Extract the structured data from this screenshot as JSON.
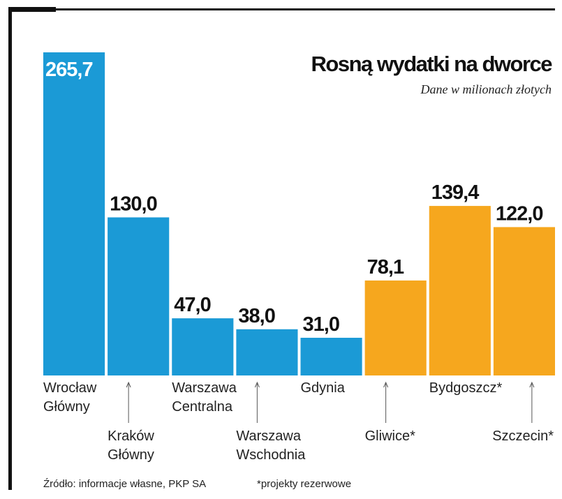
{
  "chart_data": {
    "type": "bar",
    "title": "Rosną wydatki na dworce",
    "subtitle": "Dane w milionach złotych",
    "categories": [
      "Wrocław\nGłówny",
      "Kraków\nGłówny",
      "Warszawa\nCentralna",
      "Warszawa\nWschodnia",
      "Gdynia",
      "Gliwice*",
      "Bydgoszcz*",
      "Szczecin*"
    ],
    "values": [
      265.7,
      130.0,
      47.0,
      38.0,
      31.0,
      78.1,
      139.4,
      122.0
    ],
    "value_labels": [
      "265,7",
      "130,0",
      "47,0",
      "38,0",
      "31,0",
      "78,1",
      "139,4",
      "122,0"
    ],
    "colors": [
      "#1b9ad6",
      "#1b9ad6",
      "#1b9ad6",
      "#1b9ad6",
      "#1b9ad6",
      "#f6a71e",
      "#f6a71e",
      "#f6a71e"
    ],
    "source": "Źródło: informacje własne, PKP SA",
    "footnote": "*projekty rezerwowe"
  }
}
